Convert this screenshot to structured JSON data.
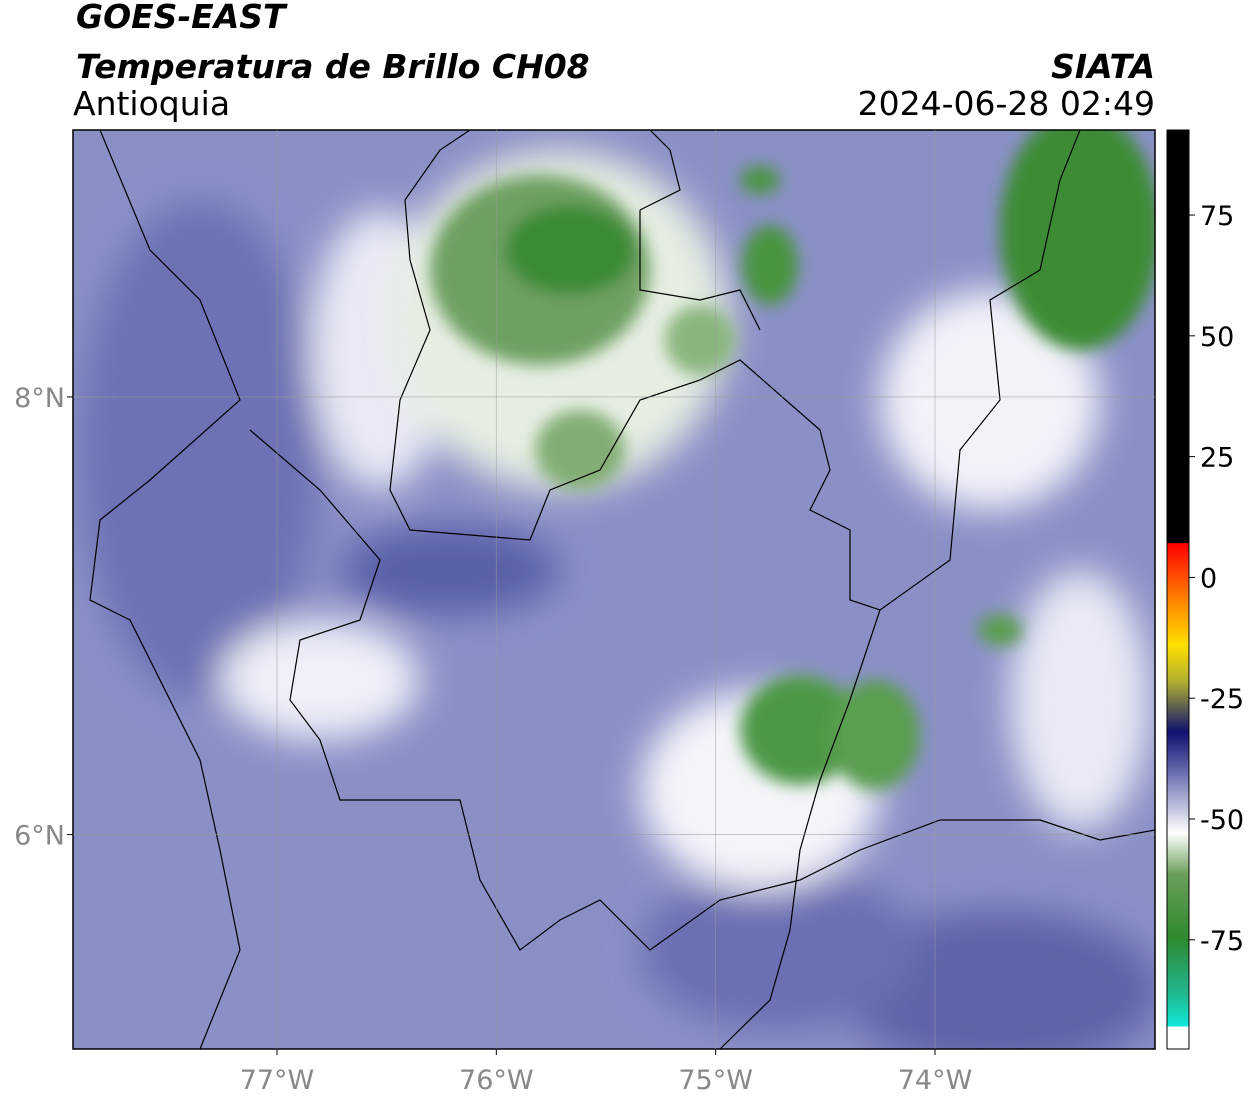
{
  "header": {
    "title": "GOES-EAST",
    "subtitle": "Temperatura de Brillo CH08",
    "region": "Antioquia",
    "source": "SIATA",
    "datetime": "2024-06-28 02:49"
  },
  "map": {
    "xlim": [
      -77.93,
      -72.997
    ],
    "ylim": [
      5.02,
      9.22
    ],
    "xticks": [
      {
        "value": -77,
        "label": "77°W"
      },
      {
        "value": -76,
        "label": "76°W"
      },
      {
        "value": -75,
        "label": "75°W"
      },
      {
        "value": -74,
        "label": "74°W"
      }
    ],
    "yticks": [
      {
        "value": 8,
        "label": "8°N"
      },
      {
        "value": 6,
        "label": "6°N"
      }
    ]
  },
  "colorbar": {
    "lim": [
      -97.6,
      92.6
    ],
    "ticks": [
      75,
      50,
      25,
      0,
      -25,
      -50,
      -75
    ]
  }
}
